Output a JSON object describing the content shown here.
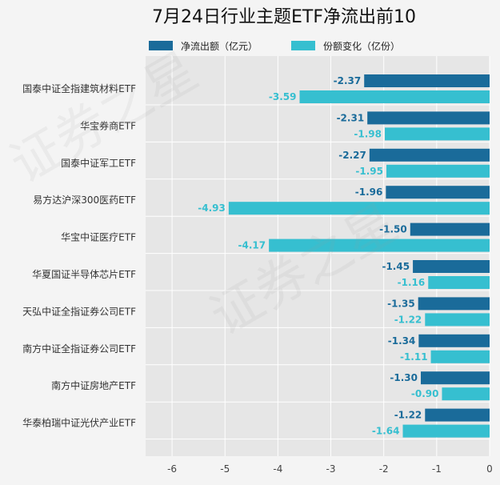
{
  "chart_data": {
    "type": "bar",
    "orientation": "horizontal",
    "title": "7月24日行业主题ETF净流出前10",
    "categories": [
      "国泰中证全指建筑材料ETF",
      "华宝券商ETF",
      "国泰中证军工ETF",
      "易方达沪深300医药ETF",
      "华宝中证医疗ETF",
      "华夏国证半导体芯片ETF",
      "天弘中证全指证券公司ETF",
      "南方中证全指证券公司ETF",
      "南方中证房地产ETF",
      "华泰柏瑞中证光伏产业ETF"
    ],
    "series": [
      {
        "name": "净流出额（亿元）",
        "color": "#1a6b9a",
        "values": [
          -2.37,
          -2.31,
          -2.27,
          -1.96,
          -1.5,
          -1.45,
          -1.35,
          -1.34,
          -1.3,
          -1.22
        ],
        "value_labels": [
          "-2.37",
          "-2.31",
          "-2.27",
          "-1.96",
          "-1.50",
          "-1.45",
          "-1.35",
          "-1.34",
          "-1.30",
          "-1.22"
        ]
      },
      {
        "name": "份额变化（亿份）",
        "color": "#36bfd0",
        "values": [
          -3.59,
          -1.98,
          -1.95,
          -4.93,
          -4.17,
          -1.16,
          -1.22,
          -1.11,
          -0.9,
          -1.64
        ],
        "value_labels": [
          "-3.59",
          "-1.98",
          "-1.95",
          "-4.93",
          "-4.17",
          "-1.16",
          "-1.22",
          "-1.11",
          "-0.90",
          "-1.64"
        ]
      }
    ],
    "xlim": [
      -6.5,
      0
    ],
    "xticks": [
      -6,
      -5,
      -4,
      -3,
      -2,
      -1,
      0
    ],
    "xtick_labels": [
      "-6",
      "-5",
      "-4",
      "-3",
      "-2",
      "-1",
      "0"
    ],
    "grid": true,
    "legend_position": "top"
  },
  "watermark": "证券之星"
}
